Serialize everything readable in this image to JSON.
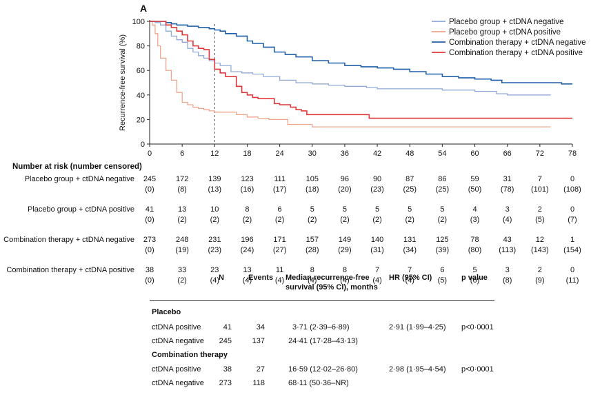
{
  "panel_letter": "A",
  "chart_data": {
    "type": "line",
    "title": "",
    "xlabel": "",
    "ylabel": "Recurrence-free survival (%)",
    "xlim": [
      0,
      78
    ],
    "ylim": [
      0,
      100
    ],
    "xticks": [
      0,
      6,
      12,
      18,
      24,
      30,
      36,
      42,
      48,
      54,
      60,
      66,
      72,
      78
    ],
    "yticks": [
      0,
      20,
      40,
      60,
      80,
      100
    ],
    "reference_line_x": 12,
    "legend_position": "top-right",
    "series": [
      {
        "name": "Placebo group + ctDNA negative",
        "color": "#8fa8d6",
        "points": [
          [
            0,
            100
          ],
          [
            1,
            99
          ],
          [
            2,
            97
          ],
          [
            3,
            92
          ],
          [
            4,
            88
          ],
          [
            5,
            85
          ],
          [
            6,
            83
          ],
          [
            7,
            78
          ],
          [
            8,
            75
          ],
          [
            9,
            72
          ],
          [
            10,
            70
          ],
          [
            11,
            68
          ],
          [
            12,
            66
          ],
          [
            13,
            64
          ],
          [
            15,
            59
          ],
          [
            17,
            58
          ],
          [
            19,
            57
          ],
          [
            21,
            55
          ],
          [
            24,
            52
          ],
          [
            27,
            50
          ],
          [
            30,
            49
          ],
          [
            33,
            48
          ],
          [
            36,
            47
          ],
          [
            40,
            46
          ],
          [
            42,
            45
          ],
          [
            48,
            45
          ],
          [
            54,
            44
          ],
          [
            60,
            43
          ],
          [
            64,
            41
          ],
          [
            66,
            40
          ],
          [
            72,
            40
          ],
          [
            74,
            40
          ]
        ]
      },
      {
        "name": "Placebo group + ctDNA positive",
        "color": "#f0a58a",
        "points": [
          [
            0,
            100
          ],
          [
            0.5,
            97
          ],
          [
            1,
            90
          ],
          [
            1.5,
            80
          ],
          [
            2,
            70
          ],
          [
            3,
            60
          ],
          [
            4,
            52
          ],
          [
            5,
            42
          ],
          [
            6,
            34
          ],
          [
            7,
            32
          ],
          [
            8,
            30
          ],
          [
            9,
            29
          ],
          [
            10,
            28
          ],
          [
            11,
            27
          ],
          [
            12,
            26
          ],
          [
            15,
            26
          ],
          [
            16,
            24
          ],
          [
            18,
            22
          ],
          [
            20,
            21
          ],
          [
            22,
            20
          ],
          [
            25,
            20
          ],
          [
            25.5,
            16
          ],
          [
            30,
            14
          ],
          [
            34,
            14
          ],
          [
            36,
            14
          ],
          [
            44,
            14
          ],
          [
            72,
            14
          ],
          [
            74,
            14
          ]
        ]
      },
      {
        "name": "Combination therapy + ctDNA negative",
        "color": "#1f5fa8",
        "points": [
          [
            0,
            100
          ],
          [
            2,
            100
          ],
          [
            3,
            99
          ],
          [
            4,
            98
          ],
          [
            5,
            97
          ],
          [
            7,
            96
          ],
          [
            9,
            95
          ],
          [
            11,
            94
          ],
          [
            12,
            93
          ],
          [
            13,
            92
          ],
          [
            14,
            90
          ],
          [
            16,
            88
          ],
          [
            18,
            84
          ],
          [
            19,
            82
          ],
          [
            21,
            79
          ],
          [
            23,
            75
          ],
          [
            25,
            73
          ],
          [
            27,
            71
          ],
          [
            30,
            68
          ],
          [
            33,
            66
          ],
          [
            36,
            64
          ],
          [
            39,
            63
          ],
          [
            42,
            62
          ],
          [
            45,
            61
          ],
          [
            48,
            59
          ],
          [
            51,
            57
          ],
          [
            54,
            55
          ],
          [
            57,
            54
          ],
          [
            60,
            53
          ],
          [
            63,
            52
          ],
          [
            65,
            50
          ],
          [
            70,
            50
          ],
          [
            76,
            49
          ],
          [
            78,
            49
          ]
        ]
      },
      {
        "name": "Combination therapy + ctDNA positive",
        "color": "#e0383a",
        "points": [
          [
            0,
            100
          ],
          [
            2,
            100
          ],
          [
            3,
            97
          ],
          [
            4,
            95
          ],
          [
            5,
            92
          ],
          [
            6,
            89
          ],
          [
            7,
            84
          ],
          [
            8,
            80
          ],
          [
            9,
            78
          ],
          [
            10,
            77
          ],
          [
            11,
            69
          ],
          [
            12,
            61
          ],
          [
            13,
            58
          ],
          [
            14,
            55
          ],
          [
            15,
            55
          ],
          [
            16,
            47
          ],
          [
            17,
            42
          ],
          [
            18,
            40
          ],
          [
            19,
            38
          ],
          [
            20,
            37
          ],
          [
            22,
            37
          ],
          [
            23,
            33
          ],
          [
            24,
            32
          ],
          [
            26,
            30
          ],
          [
            27,
            28
          ],
          [
            28,
            27
          ],
          [
            29,
            24
          ],
          [
            32,
            24
          ],
          [
            40,
            24
          ],
          [
            40.5,
            21
          ],
          [
            60,
            21
          ],
          [
            78,
            21
          ]
        ]
      }
    ]
  },
  "risk_table": {
    "title": "Number at risk (number censored)",
    "times": [
      0,
      6,
      12,
      18,
      24,
      30,
      36,
      42,
      48,
      54,
      60,
      66,
      72,
      78
    ],
    "rows": [
      {
        "label": "Placebo group + ctDNA negative",
        "at_risk": [
          "245",
          "172",
          "139",
          "123",
          "111",
          "105",
          "96",
          "90",
          "87",
          "86",
          "59",
          "31",
          "7",
          "0"
        ],
        "censored": [
          "(0)",
          "(8)",
          "(13)",
          "(16)",
          "(17)",
          "(18)",
          "(20)",
          "(23)",
          "(25)",
          "(25)",
          "(50)",
          "(78)",
          "(101)",
          "(108)"
        ]
      },
      {
        "label": "Placebo group + ctDNA positive",
        "at_risk": [
          "41",
          "13",
          "10",
          "8",
          "6",
          "5",
          "5",
          "5",
          "5",
          "5",
          "4",
          "3",
          "2",
          "0"
        ],
        "censored": [
          "(0)",
          "(2)",
          "(2)",
          "(2)",
          "(2)",
          "(2)",
          "(2)",
          "(2)",
          "(2)",
          "(2)",
          "(3)",
          "(4)",
          "(5)",
          "(7)"
        ]
      },
      {
        "label": "Combination therapy + ctDNA negative",
        "at_risk": [
          "273",
          "248",
          "231",
          "196",
          "171",
          "157",
          "149",
          "140",
          "131",
          "125",
          "78",
          "43",
          "12",
          "1"
        ],
        "censored": [
          "(0)",
          "(19)",
          "(23)",
          "(24)",
          "(27)",
          "(28)",
          "(29)",
          "(31)",
          "(34)",
          "(39)",
          "(80)",
          "(113)",
          "(143)",
          "(154)"
        ]
      },
      {
        "label": "Combination therapy + ctDNA positive",
        "at_risk": [
          "38",
          "33",
          "23",
          "13",
          "11",
          "8",
          "8",
          "7",
          "7",
          "6",
          "5",
          "3",
          "2",
          "0"
        ],
        "censored": [
          "(0)",
          "(2)",
          "(4)",
          "(4)",
          "(4)",
          "(4)",
          "(4)",
          "(4)",
          "(4)",
          "(5)",
          "(6)",
          "(8)",
          "(9)",
          "(11)"
        ]
      }
    ]
  },
  "summary_table": {
    "headers": {
      "n": "N",
      "events": "Events",
      "median_line1": "Median recurrence-free",
      "median_line2": "survival (95% CI), months",
      "hr": "HR (95% CI)",
      "p": "p value"
    },
    "groups": [
      {
        "name": "Placebo",
        "rows": [
          {
            "label": "ctDNA positive",
            "n": "41",
            "events": "34",
            "median": "3·71 (2·39–6·89)",
            "hr": "2·91 (1·99–4·25)",
            "p": "p<0·0001"
          },
          {
            "label": "ctDNA negative",
            "n": "245",
            "events": "137",
            "median": "24·41 (17·28–43·13)",
            "hr": "",
            "p": ""
          }
        ]
      },
      {
        "name": "Combination therapy",
        "rows": [
          {
            "label": "ctDNA positive",
            "n": "38",
            "events": "27",
            "median": "16·59 (12·02–26·80)",
            "hr": "2·98 (1·95–4·54)",
            "p": "p<0·0001"
          },
          {
            "label": "ctDNA negative",
            "n": "273",
            "events": "118",
            "median": "68·11 (50·36–NR)",
            "hr": "",
            "p": ""
          }
        ]
      }
    ]
  }
}
